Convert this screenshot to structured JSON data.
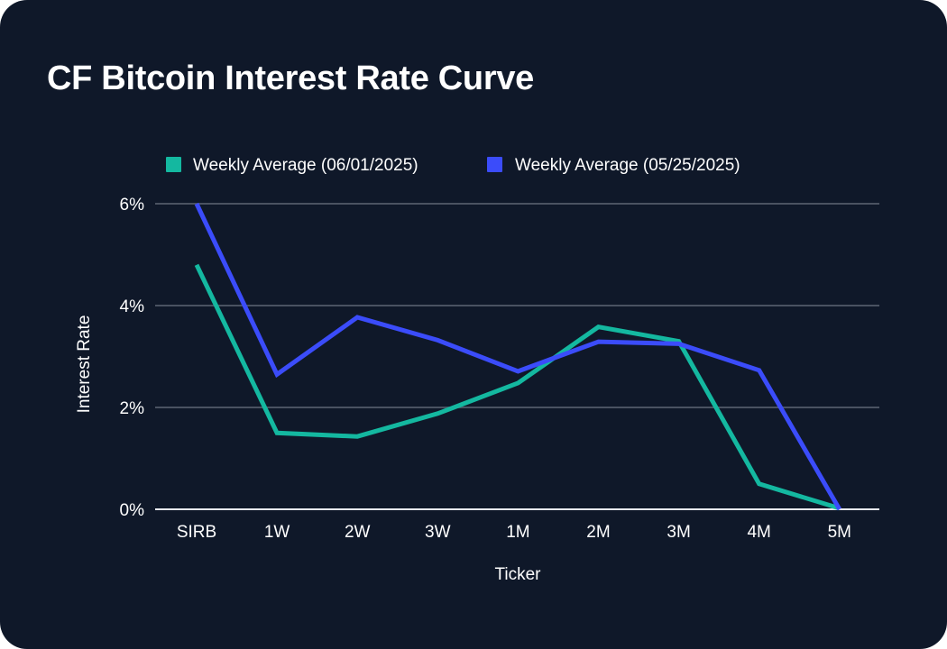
{
  "chart_data": {
    "type": "line",
    "title": "CF Bitcoin Interest Rate Curve",
    "xlabel": "Ticker",
    "ylabel": "Interest Rate",
    "categories": [
      "SIRB",
      "1W",
      "2W",
      "3W",
      "1M",
      "2M",
      "3M",
      "4M",
      "5M"
    ],
    "yticks": [
      0,
      2,
      4,
      6
    ],
    "ytick_labels": [
      "0%",
      "2%",
      "4%",
      "6%"
    ],
    "ylim": [
      0,
      6
    ],
    "grid": true,
    "legend_position": "top",
    "series": [
      {
        "name": "Weekly Average (06/01/2025)",
        "color": "#14b8a0",
        "values": [
          4.8,
          1.5,
          1.43,
          1.88,
          2.48,
          3.58,
          3.3,
          0.5,
          0.02
        ]
      },
      {
        "name": "Weekly Average (05/25/2025)",
        "color": "#3b4cfa",
        "values": [
          6.0,
          2.65,
          3.77,
          3.32,
          2.71,
          3.29,
          3.25,
          2.73,
          0.0
        ]
      }
    ]
  }
}
